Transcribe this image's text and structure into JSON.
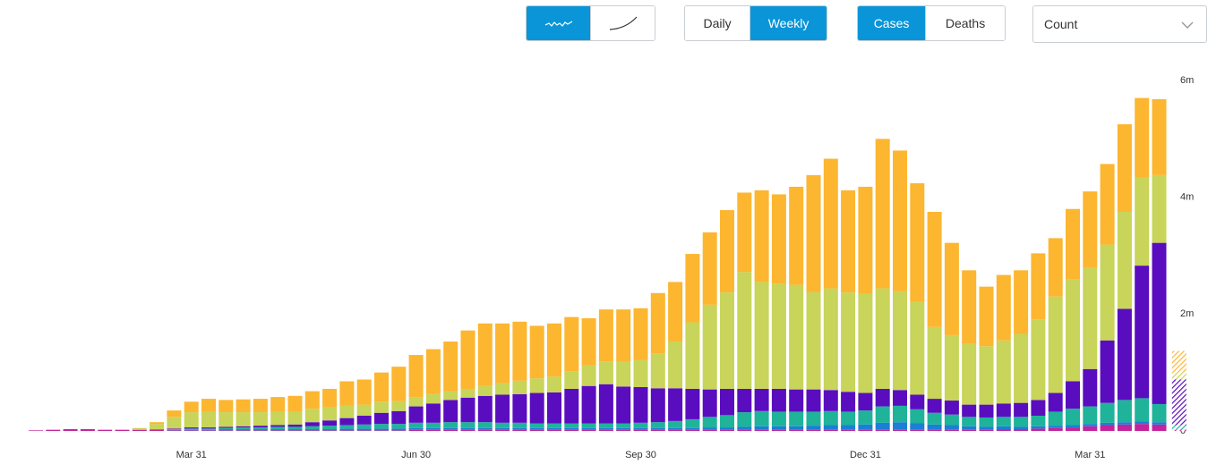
{
  "controls": {
    "chart_styles": [
      "wave",
      "curve"
    ],
    "active_style": 0,
    "intervals": [
      "Daily",
      "Weekly"
    ],
    "active_interval": 1,
    "metrics": [
      "Cases",
      "Deaths"
    ],
    "active_metric": 0,
    "measure": "Count"
  },
  "chart_data": {
    "type": "stacked_bar",
    "categories": [
      null,
      null,
      null,
      null,
      null,
      null,
      null,
      null,
      null,
      "Mar 31",
      null,
      null,
      null,
      null,
      null,
      null,
      null,
      null,
      null,
      null,
      null,
      null,
      "Jun 30",
      null,
      null,
      null,
      null,
      null,
      null,
      null,
      null,
      null,
      null,
      null,
      null,
      "Sep 30",
      null,
      null,
      null,
      null,
      null,
      null,
      null,
      null,
      null,
      null,
      null,
      null,
      "Dec 31",
      null,
      null,
      null,
      null,
      null,
      null,
      null,
      null,
      null,
      null,
      null,
      null,
      "Mar 31",
      null,
      null,
      null,
      null,
      null
    ],
    "series": [
      {
        "name": null,
        "color": "#c2249b",
        "values": [
          10000,
          20000,
          30000,
          30000,
          20000,
          20000,
          20000,
          20000,
          10000,
          10000,
          10000,
          10000,
          10000,
          10000,
          10000,
          10000,
          10000,
          10000,
          10000,
          10000,
          10000,
          10000,
          20000,
          20000,
          20000,
          20000,
          20000,
          20000,
          20000,
          20000,
          20000,
          20000,
          20000,
          20000,
          20000,
          20000,
          20000,
          20000,
          20000,
          20000,
          20000,
          20000,
          20000,
          20000,
          20000,
          20000,
          20000,
          20000,
          20000,
          20000,
          20000,
          20000,
          20000,
          20000,
          20000,
          20000,
          30000,
          30000,
          40000,
          50000,
          60000,
          80000,
          100000,
          110000,
          120000,
          110000,
          20000
        ]
      },
      {
        "name": null,
        "color": "#1a7fd6",
        "values": [
          0,
          0,
          0,
          0,
          0,
          0,
          0,
          0,
          10000,
          10000,
          10000,
          20000,
          20000,
          20000,
          20000,
          20000,
          20000,
          20000,
          30000,
          30000,
          30000,
          30000,
          30000,
          30000,
          30000,
          30000,
          30000,
          30000,
          30000,
          30000,
          30000,
          30000,
          30000,
          30000,
          30000,
          30000,
          30000,
          30000,
          30000,
          40000,
          40000,
          50000,
          60000,
          60000,
          60000,
          70000,
          80000,
          80000,
          90000,
          120000,
          130000,
          110000,
          90000,
          80000,
          60000,
          50000,
          50000,
          40000,
          40000,
          40000,
          40000,
          40000,
          40000,
          40000,
          40000,
          40000,
          10000
        ]
      },
      {
        "name": null,
        "color": "#1fb39a",
        "values": [
          0,
          0,
          0,
          0,
          0,
          0,
          0,
          5000,
          10000,
          20000,
          20000,
          20000,
          30000,
          30000,
          40000,
          40000,
          50000,
          60000,
          60000,
          70000,
          80000,
          80000,
          90000,
          90000,
          100000,
          100000,
          100000,
          90000,
          90000,
          80000,
          80000,
          80000,
          80000,
          80000,
          80000,
          90000,
          100000,
          120000,
          150000,
          180000,
          210000,
          250000,
          260000,
          250000,
          250000,
          240000,
          240000,
          230000,
          240000,
          280000,
          280000,
          240000,
          200000,
          180000,
          160000,
          160000,
          160000,
          170000,
          180000,
          240000,
          280000,
          300000,
          340000,
          380000,
          400000,
          310000,
          70000
        ]
      },
      {
        "name": null,
        "color": "#5a0dbf",
        "values": [
          0,
          0,
          0,
          0,
          0,
          0,
          0,
          5000,
          10000,
          20000,
          20000,
          20000,
          20000,
          30000,
          30000,
          40000,
          70000,
          90000,
          120000,
          150000,
          190000,
          220000,
          280000,
          330000,
          380000,
          420000,
          450000,
          480000,
          490000,
          520000,
          530000,
          590000,
          640000,
          670000,
          630000,
          610000,
          580000,
          560000,
          520000,
          470000,
          450000,
          400000,
          380000,
          390000,
          380000,
          380000,
          360000,
          340000,
          300000,
          300000,
          270000,
          250000,
          240000,
          240000,
          210000,
          220000,
          230000,
          240000,
          270000,
          320000,
          470000,
          640000,
          1070000,
          1560000,
          2270000,
          2760000,
          780000
        ]
      },
      {
        "name": null,
        "color": "#c8d45a",
        "values": [
          0,
          0,
          0,
          0,
          0,
          0,
          30000,
          90000,
          200000,
          260000,
          270000,
          250000,
          240000,
          230000,
          230000,
          220000,
          230000,
          220000,
          210000,
          190000,
          190000,
          170000,
          160000,
          160000,
          150000,
          150000,
          170000,
          200000,
          230000,
          250000,
          270000,
          300000,
          350000,
          390000,
          420000,
          460000,
          600000,
          800000,
          1140000,
          1450000,
          1650000,
          2000000,
          1830000,
          1800000,
          1790000,
          1670000,
          1740000,
          1700000,
          1700000,
          1720000,
          1690000,
          1590000,
          1230000,
          1120000,
          1040000,
          1000000,
          1080000,
          1180000,
          1380000,
          1650000,
          1740000,
          1730000,
          1640000,
          1660000,
          1510000,
          1160000,
          120000
        ]
      },
      {
        "name": null,
        "color": "#fcb630",
        "values": [
          0,
          0,
          0,
          0,
          0,
          0,
          0,
          30000,
          110000,
          180000,
          220000,
          210000,
          220000,
          230000,
          250000,
          270000,
          300000,
          320000,
          420000,
          430000,
          500000,
          590000,
          720000,
          770000,
          850000,
          1000000,
          1070000,
          1020000,
          1010000,
          900000,
          910000,
          930000,
          810000,
          890000,
          900000,
          890000,
          1030000,
          1020000,
          1170000,
          1240000,
          1410000,
          1360000,
          1570000,
          1530000,
          1680000,
          2000000,
          2220000,
          1750000,
          1830000,
          2560000,
          2410000,
          2030000,
          1970000,
          1580000,
          1260000,
          1020000,
          1120000,
          1090000,
          1130000,
          1000000,
          1210000,
          1310000,
          1380000,
          1500000,
          1360000,
          1300000,
          370000
        ]
      }
    ],
    "ylim": [
      0,
      6000000
    ],
    "yticks": [
      {
        "value": 0,
        "label": "0"
      },
      {
        "value": 2000000,
        "label": "2m"
      },
      {
        "value": 4000000,
        "label": "4m"
      },
      {
        "value": 6000000,
        "label": "6m"
      }
    ],
    "hatched_last": true,
    "grid": false
  }
}
